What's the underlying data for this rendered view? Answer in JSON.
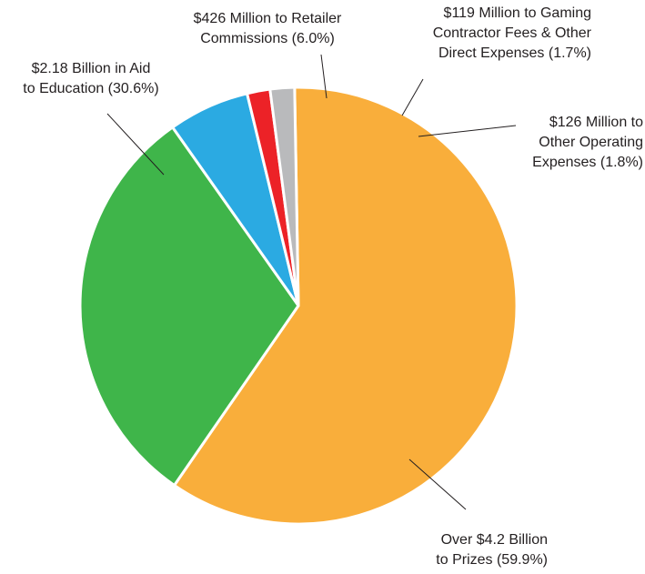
{
  "chart_data": {
    "type": "pie",
    "title": "",
    "start_angle_deg": -1,
    "direction": "clockwise",
    "slices": [
      {
        "name": "Over $4.2 Billion to Prizes",
        "value": 59.9,
        "percent_label": "(59.9%)",
        "label_lines": [
          "Over $4.2 Billion",
          "to Prizes (59.9%)"
        ],
        "color": "#f9ae3b"
      },
      {
        "name": "$2.18 Billion in Aid to Education",
        "value": 30.6,
        "percent_label": "(30.6%)",
        "label_lines": [
          "$2.18 Billion in Aid",
          "to Education (30.6%)"
        ],
        "color": "#3fb54a"
      },
      {
        "name": "$426 Million to Retailer Commissions",
        "value": 6.0,
        "percent_label": "(6.0%)",
        "label_lines": [
          "$426 Million to Retailer",
          "Commissions (6.0%)"
        ],
        "color": "#2baae2"
      },
      {
        "name": "$119 Million to Gaming Contractor Fees & Other Direct Expenses",
        "value": 1.7,
        "percent_label": "(1.7%)",
        "label_lines": [
          "$119 Million to Gaming",
          "Contractor Fees & Other",
          "Direct Expenses (1.7%)"
        ],
        "color": "#ec2227"
      },
      {
        "name": "$126 Million to Other Operating Expenses",
        "value": 1.8,
        "percent_label": "(1.8%)",
        "label_lines": [
          "$126 Million to",
          "Other Operating",
          "Expenses (1.8%)"
        ],
        "color": "#b9babc"
      }
    ]
  }
}
